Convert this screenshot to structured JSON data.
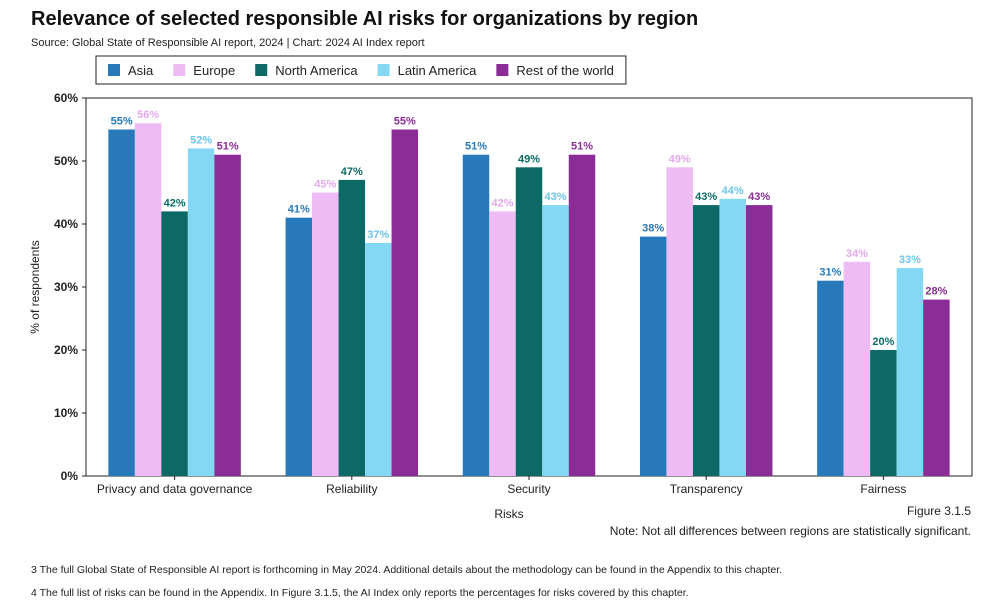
{
  "header": {
    "title": "Relevance of selected responsible AI risks for organizations by region",
    "source": "Source: Global State of Responsible AI report, 2024 | Chart: 2024 AI Index report"
  },
  "chart_data": {
    "type": "bar",
    "title": "Relevance of selected responsible AI risks for organizations by region",
    "xlabel": "Risks",
    "ylabel": "% of respondents",
    "ylim": [
      0,
      60
    ],
    "yticks": [
      "0%",
      "10%",
      "20%",
      "30%",
      "40%",
      "50%",
      "60%"
    ],
    "grid": false,
    "legend_position": "top",
    "categories": [
      "Privacy and data governance",
      "Reliability",
      "Security",
      "Transparency",
      "Fairness"
    ],
    "series": [
      {
        "name": "Asia",
        "color": "#2879b9",
        "label_color": "#2879b9",
        "values": [
          55,
          41,
          51,
          38,
          31
        ]
      },
      {
        "name": "Europe",
        "color": "#eebbf4",
        "label_color": "#e3a9ec",
        "values": [
          56,
          45,
          42,
          49,
          34
        ]
      },
      {
        "name": "North America",
        "color": "#0d6965",
        "label_color": "#0d6965",
        "values": [
          42,
          47,
          49,
          43,
          20
        ]
      },
      {
        "name": "Latin America",
        "color": "#85d8f4",
        "label_color": "#6cc6ea",
        "values": [
          52,
          37,
          43,
          44,
          33
        ]
      },
      {
        "name": "Rest of the world",
        "color": "#8b2c97",
        "label_color": "#8b2c97",
        "values": [
          51,
          55,
          51,
          43,
          28
        ]
      }
    ]
  },
  "figure_label": "Figure 3.1.5",
  "note": "Note: Not all differences between regions are statistically significant.",
  "footnotes": [
    "3 The full Global State of Responsible AI report is forthcoming in May 2024. Additional details about the methodology can be found in the Appendix to this chapter.",
    "4 The full list of risks can be found in the Appendix. In Figure 3.1.5, the AI Index only reports the percentages for risks covered by this chapter."
  ]
}
